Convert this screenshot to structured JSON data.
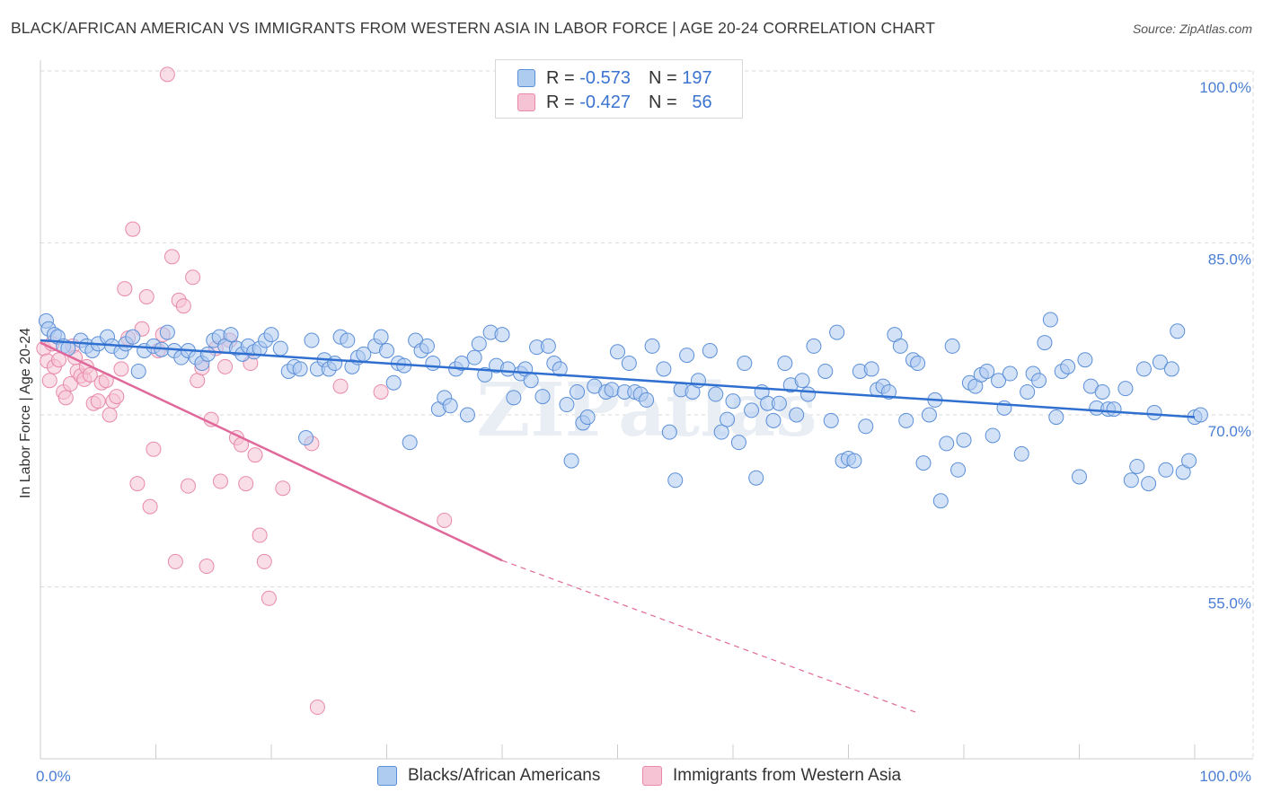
{
  "title": "BLACK/AFRICAN AMERICAN VS IMMIGRANTS FROM WESTERN ASIA IN LABOR FORCE | AGE 20-24 CORRELATION CHART",
  "source": "Source: ZipAtlas.com",
  "legend": {
    "rows": [
      {
        "r_label": "R =",
        "r_value": "-0.573",
        "n_label": "N =",
        "n_value": "197"
      },
      {
        "r_label": "R =",
        "r_value": "-0.427",
        "n_label": "N =",
        "n_value": "56"
      }
    ]
  },
  "bottom_legend": [
    "Blacks/African Americans",
    "Immigrants from Western Asia"
  ],
  "colors": {
    "blue_fill": "#aecbf0",
    "blue_stroke": "#5b8fd8",
    "blue_line": "#2f6fd0",
    "pink_fill": "#f6c3d4",
    "pink_stroke": "#e88aa8",
    "pink_line": "#e0689a",
    "grid": "#d9d9d9",
    "tick_text": "#4a7ed4"
  },
  "chart_data": {
    "type": "scatter",
    "ylabel": "In Labor Force | Age 20-24",
    "xlim": [
      0,
      100
    ],
    "ylim": [
      40,
      100
    ],
    "y_ticks": [
      {
        "value": 100,
        "label": "100.0%"
      },
      {
        "value": 85,
        "label": "85.0%"
      },
      {
        "value": 70,
        "label": "70.0%"
      },
      {
        "value": 55,
        "label": "55.0%"
      }
    ],
    "x_tick_labels": [
      {
        "value": 0,
        "label": "0.0%"
      },
      {
        "value": 100,
        "label": "100.0%"
      }
    ],
    "watermark": "ZIPatlas",
    "series": [
      {
        "name": "Blacks/African Americans",
        "trend": {
          "x": [
            0,
            100
          ],
          "y": [
            76.5,
            69.8
          ],
          "dashed_to": null
        },
        "points": [
          [
            0.5,
            78.2
          ],
          [
            0.7,
            77.5
          ],
          [
            1.2,
            77.0
          ],
          [
            1.5,
            76.8
          ],
          [
            2.0,
            76.0
          ],
          [
            2.4,
            75.8
          ],
          [
            3.5,
            76.5
          ],
          [
            4.0,
            76.0
          ],
          [
            4.5,
            75.6
          ],
          [
            5.0,
            76.2
          ],
          [
            5.8,
            76.8
          ],
          [
            6.2,
            76.0
          ],
          [
            7.0,
            75.5
          ],
          [
            7.4,
            76.2
          ],
          [
            8.0,
            76.8
          ],
          [
            8.5,
            73.8
          ],
          [
            9.0,
            75.6
          ],
          [
            9.8,
            76.0
          ],
          [
            10.5,
            75.7
          ],
          [
            11.0,
            77.2
          ],
          [
            11.6,
            75.6
          ],
          [
            12.2,
            75.0
          ],
          [
            12.8,
            75.6
          ],
          [
            13.5,
            75.0
          ],
          [
            14.0,
            74.5
          ],
          [
            14.5,
            75.3
          ],
          [
            15.0,
            76.5
          ],
          [
            15.5,
            76.8
          ],
          [
            16.0,
            76.0
          ],
          [
            16.5,
            77.0
          ],
          [
            17.0,
            75.8
          ],
          [
            17.5,
            75.3
          ],
          [
            18.0,
            76.0
          ],
          [
            18.5,
            75.5
          ],
          [
            19.0,
            75.8
          ],
          [
            19.5,
            76.5
          ],
          [
            20.0,
            77.0
          ],
          [
            20.8,
            75.8
          ],
          [
            21.5,
            73.8
          ],
          [
            22.0,
            74.2
          ],
          [
            22.5,
            74.0
          ],
          [
            23.0,
            68.0
          ],
          [
            23.5,
            76.5
          ],
          [
            24.0,
            74.0
          ],
          [
            24.6,
            74.8
          ],
          [
            25.0,
            74.0
          ],
          [
            25.5,
            74.5
          ],
          [
            26.0,
            76.8
          ],
          [
            26.6,
            76.5
          ],
          [
            27.0,
            74.2
          ],
          [
            27.5,
            75.0
          ],
          [
            28.0,
            75.3
          ],
          [
            29.0,
            76.0
          ],
          [
            29.5,
            76.8
          ],
          [
            30.0,
            75.6
          ],
          [
            30.6,
            72.8
          ],
          [
            31.0,
            74.5
          ],
          [
            31.5,
            74.3
          ],
          [
            32.0,
            67.6
          ],
          [
            32.5,
            76.5
          ],
          [
            33.0,
            75.6
          ],
          [
            33.5,
            76.0
          ],
          [
            34.0,
            74.5
          ],
          [
            34.5,
            70.5
          ],
          [
            35.0,
            71.5
          ],
          [
            35.5,
            70.8
          ],
          [
            36.0,
            74.0
          ],
          [
            36.5,
            74.5
          ],
          [
            37.0,
            70.0
          ],
          [
            37.6,
            75.0
          ],
          [
            38.0,
            76.2
          ],
          [
            38.5,
            73.5
          ],
          [
            39.0,
            77.2
          ],
          [
            39.5,
            74.3
          ],
          [
            40.0,
            77.0
          ],
          [
            40.5,
            74.0
          ],
          [
            41.0,
            71.5
          ],
          [
            41.6,
            73.6
          ],
          [
            42.0,
            74.0
          ],
          [
            42.5,
            73.0
          ],
          [
            43.0,
            75.9
          ],
          [
            43.5,
            71.6
          ],
          [
            44.0,
            76.0
          ],
          [
            44.5,
            74.5
          ],
          [
            45.0,
            74.0
          ],
          [
            45.6,
            70.9
          ],
          [
            46.0,
            66.0
          ],
          [
            46.5,
            72.0
          ],
          [
            47.0,
            69.3
          ],
          [
            47.4,
            69.8
          ],
          [
            48.0,
            72.5
          ],
          [
            49.0,
            72.0
          ],
          [
            49.5,
            72.2
          ],
          [
            50.0,
            75.5
          ],
          [
            50.6,
            72.0
          ],
          [
            51.0,
            74.5
          ],
          [
            51.5,
            72.0
          ],
          [
            52.0,
            71.8
          ],
          [
            52.5,
            71.3
          ],
          [
            53.0,
            76.0
          ],
          [
            54.0,
            74.0
          ],
          [
            54.5,
            68.5
          ],
          [
            55.0,
            64.3
          ],
          [
            55.5,
            72.2
          ],
          [
            56.0,
            75.2
          ],
          [
            56.5,
            72.0
          ],
          [
            57.0,
            73.0
          ],
          [
            58.0,
            75.6
          ],
          [
            58.5,
            71.8
          ],
          [
            59.0,
            68.5
          ],
          [
            59.5,
            69.6
          ],
          [
            60.0,
            71.2
          ],
          [
            60.5,
            67.6
          ],
          [
            61.0,
            74.5
          ],
          [
            61.6,
            70.4
          ],
          [
            62.0,
            64.5
          ],
          [
            62.5,
            72.0
          ],
          [
            63.0,
            71.0
          ],
          [
            63.5,
            69.5
          ],
          [
            64.0,
            71.0
          ],
          [
            64.5,
            74.5
          ],
          [
            65.0,
            72.6
          ],
          [
            65.5,
            70.0
          ],
          [
            66.0,
            73.0
          ],
          [
            66.5,
            71.8
          ],
          [
            67.0,
            76.0
          ],
          [
            68.0,
            73.8
          ],
          [
            68.5,
            69.5
          ],
          [
            69.0,
            77.2
          ],
          [
            69.5,
            66.0
          ],
          [
            70.0,
            66.2
          ],
          [
            70.5,
            66.0
          ],
          [
            71.0,
            73.8
          ],
          [
            71.5,
            69.0
          ],
          [
            72.0,
            74.0
          ],
          [
            72.5,
            72.2
          ],
          [
            73.0,
            72.5
          ],
          [
            73.5,
            72.0
          ],
          [
            74.0,
            77.0
          ],
          [
            74.5,
            76.0
          ],
          [
            75.0,
            69.5
          ],
          [
            75.6,
            74.8
          ],
          [
            76.0,
            74.5
          ],
          [
            76.5,
            65.8
          ],
          [
            77.0,
            70.0
          ],
          [
            77.5,
            71.3
          ],
          [
            78.0,
            62.5
          ],
          [
            78.5,
            67.5
          ],
          [
            79.0,
            76.0
          ],
          [
            79.5,
            65.2
          ],
          [
            80.0,
            67.8
          ],
          [
            80.5,
            72.8
          ],
          [
            81.0,
            72.5
          ],
          [
            81.5,
            73.5
          ],
          [
            82.0,
            73.8
          ],
          [
            82.5,
            68.2
          ],
          [
            83.0,
            73.0
          ],
          [
            83.5,
            70.6
          ],
          [
            84.0,
            73.6
          ],
          [
            85.0,
            66.6
          ],
          [
            85.5,
            72.0
          ],
          [
            86.0,
            73.6
          ],
          [
            86.5,
            73.0
          ],
          [
            87.0,
            76.3
          ],
          [
            87.5,
            78.3
          ],
          [
            88.0,
            69.8
          ],
          [
            88.5,
            73.8
          ],
          [
            89.0,
            74.2
          ],
          [
            90.0,
            64.6
          ],
          [
            90.5,
            74.8
          ],
          [
            91.0,
            72.5
          ],
          [
            91.5,
            70.6
          ],
          [
            92.0,
            72.0
          ],
          [
            92.5,
            70.5
          ],
          [
            93.0,
            70.5
          ],
          [
            94.0,
            72.3
          ],
          [
            94.5,
            64.3
          ],
          [
            95.0,
            65.5
          ],
          [
            95.6,
            74.0
          ],
          [
            96.0,
            64.0
          ],
          [
            96.5,
            70.2
          ],
          [
            97.0,
            74.6
          ],
          [
            97.5,
            65.2
          ],
          [
            98.0,
            74.0
          ],
          [
            98.5,
            77.3
          ],
          [
            99.0,
            65.0
          ],
          [
            99.5,
            66.0
          ],
          [
            100.0,
            69.8
          ],
          [
            100.5,
            70.0
          ]
        ]
      },
      {
        "name": "Immigrants from Western Asia",
        "trend": {
          "x": [
            0,
            40
          ],
          "y": [
            76.3,
            57.3
          ],
          "dashed_to": [
            76,
            44.0
          ]
        },
        "points": [
          [
            0.3,
            75.8
          ],
          [
            0.6,
            74.7
          ],
          [
            0.8,
            73.0
          ],
          [
            1.0,
            76.2
          ],
          [
            1.2,
            74.2
          ],
          [
            1.6,
            74.8
          ],
          [
            2.0,
            72.0
          ],
          [
            2.2,
            71.5
          ],
          [
            2.6,
            72.7
          ],
          [
            2.8,
            76.0
          ],
          [
            3.0,
            75.0
          ],
          [
            3.2,
            73.8
          ],
          [
            3.5,
            73.4
          ],
          [
            3.8,
            73.1
          ],
          [
            4.0,
            74.2
          ],
          [
            4.3,
            73.5
          ],
          [
            4.6,
            71.0
          ],
          [
            5.0,
            71.2
          ],
          [
            5.3,
            72.8
          ],
          [
            5.7,
            73.0
          ],
          [
            6.0,
            70.0
          ],
          [
            6.3,
            71.2
          ],
          [
            6.6,
            71.6
          ],
          [
            7.0,
            74.0
          ],
          [
            7.3,
            81.0
          ],
          [
            7.6,
            76.7
          ],
          [
            8.0,
            86.2
          ],
          [
            8.4,
            64.0
          ],
          [
            8.8,
            77.5
          ],
          [
            9.2,
            80.3
          ],
          [
            9.5,
            62.0
          ],
          [
            9.8,
            67.0
          ],
          [
            10.2,
            75.6
          ],
          [
            10.6,
            77.0
          ],
          [
            11.0,
            99.7
          ],
          [
            11.4,
            83.8
          ],
          [
            11.7,
            57.2
          ],
          [
            12.0,
            80.0
          ],
          [
            12.4,
            79.5
          ],
          [
            12.8,
            63.8
          ],
          [
            13.2,
            82.0
          ],
          [
            13.6,
            73.0
          ],
          [
            14.0,
            74.1
          ],
          [
            14.4,
            56.8
          ],
          [
            14.8,
            69.6
          ],
          [
            15.2,
            75.8
          ],
          [
            15.6,
            64.2
          ],
          [
            16.0,
            74.2
          ],
          [
            16.4,
            76.5
          ],
          [
            17.0,
            68.0
          ],
          [
            17.4,
            67.4
          ],
          [
            17.8,
            64.0
          ],
          [
            18.2,
            74.5
          ],
          [
            18.6,
            66.5
          ],
          [
            19.0,
            59.5
          ],
          [
            19.4,
            57.2
          ],
          [
            19.8,
            54.0
          ],
          [
            21.0,
            63.6
          ],
          [
            23.5,
            67.5
          ],
          [
            24.0,
            44.5
          ],
          [
            26.0,
            72.5
          ],
          [
            29.5,
            72.0
          ],
          [
            35.0,
            60.8
          ]
        ]
      }
    ]
  }
}
